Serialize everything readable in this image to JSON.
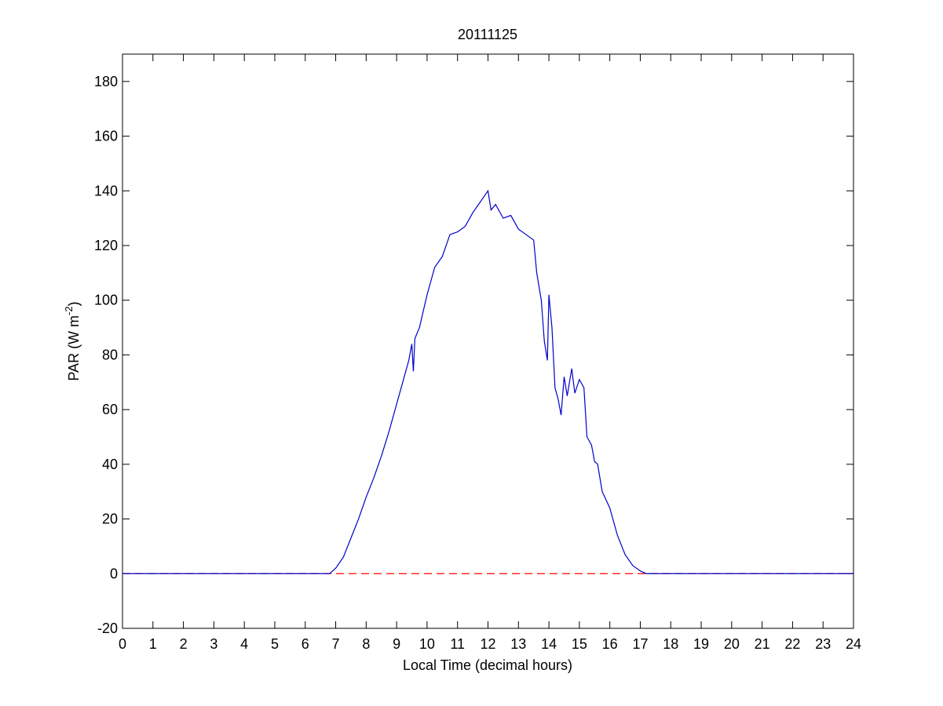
{
  "chart_data": {
    "type": "line",
    "title": "20111125",
    "x_label": "Local Time (decimal hours)",
    "y_label": [
      "PAR (W m",
      "-2",
      ")"
    ],
    "xlim": [
      0,
      24
    ],
    "ylim": [
      -20,
      190
    ],
    "xticks": [
      0,
      1,
      2,
      3,
      4,
      5,
      6,
      7,
      8,
      9,
      10,
      11,
      12,
      13,
      14,
      15,
      16,
      17,
      18,
      19,
      20,
      21,
      22,
      23,
      24
    ],
    "yticks": [
      -20,
      0,
      20,
      40,
      60,
      80,
      100,
      120,
      140,
      160,
      180
    ],
    "grid": false,
    "series": [
      {
        "color": "#0000cc",
        "style": "solid",
        "x": [
          0,
          6.8,
          7,
          7.25,
          7.5,
          7.75,
          8,
          8.25,
          8.5,
          8.75,
          9,
          9.25,
          9.4,
          9.5,
          9.55,
          9.6,
          9.75,
          10,
          10.25,
          10.5,
          10.75,
          11,
          11.25,
          11.5,
          11.75,
          12,
          12.1,
          12.25,
          12.5,
          12.75,
          13,
          13.25,
          13.5,
          13.6,
          13.75,
          13.85,
          13.95,
          14,
          14.1,
          14.2,
          14.3,
          14.4,
          14.5,
          14.6,
          14.75,
          14.85,
          15,
          15.15,
          15.25,
          15.4,
          15.5,
          15.6,
          15.75,
          16,
          16.25,
          16.5,
          16.75,
          17,
          17.2,
          24
        ],
        "values": [
          0,
          0,
          2,
          6,
          13,
          20,
          28,
          35,
          43,
          52,
          62,
          72,
          78,
          84,
          74,
          86,
          90,
          102,
          112,
          116,
          124,
          125,
          127,
          132,
          136,
          140,
          133,
          135,
          130,
          131,
          126,
          124,
          122,
          110,
          100,
          85,
          78,
          102,
          90,
          68,
          64,
          58,
          72,
          65,
          75,
          66,
          71,
          68,
          50,
          47,
          41,
          40,
          30,
          24,
          14,
          7,
          3,
          1,
          0,
          0
        ]
      },
      {
        "color": "#ff0000",
        "style": "dashed",
        "x": [
          0,
          24
        ],
        "values": [
          0,
          0
        ]
      }
    ]
  }
}
